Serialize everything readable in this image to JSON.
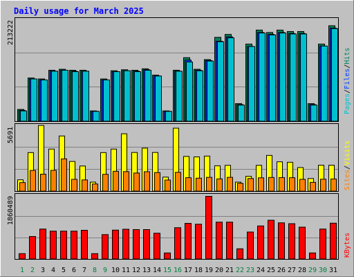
{
  "title": "Daily usage for March 2025",
  "colors": {
    "background": "#c0c0c0",
    "title": "#0000ff",
    "hits": "#00805c",
    "files": "#0040ff",
    "pages": "#00c0d0",
    "visits": "#ffff00",
    "sites": "#ff8000",
    "kbytes": "#ff0000",
    "weekday_label": "#000000",
    "weekend_label": "#008040"
  },
  "legend": {
    "hits": "Hits",
    "files": "Files",
    "pages": "Pages",
    "visits": "Visits",
    "sites": "Sites",
    "kbytes": "KBytes",
    "sep": "/"
  },
  "axis_max_labels": {
    "top": "213222",
    "middle": "5691",
    "bottom": "1860489"
  },
  "chart_data": [
    {
      "type": "bar",
      "panel": "hits-files-pages",
      "title": "Daily usage for March 2025",
      "categories": [
        "1",
        "2",
        "3",
        "4",
        "5",
        "6",
        "7",
        "8",
        "9",
        "10",
        "11",
        "12",
        "13",
        "14",
        "15",
        "16",
        "17",
        "18",
        "19",
        "20",
        "21",
        "22",
        "23",
        "24",
        "25",
        "26",
        "27",
        "28",
        "29",
        "30",
        "31"
      ],
      "weekend_days": [
        "1",
        "2",
        "8",
        "9",
        "15",
        "16",
        "22",
        "23",
        "29",
        "30"
      ],
      "ylim": [
        0,
        213222
      ],
      "series": [
        {
          "name": "Hits",
          "values": [
            25000,
            90000,
            88000,
            106000,
            108000,
            106000,
            106000,
            22000,
            88000,
            105000,
            107000,
            106000,
            109000,
            96000,
            22000,
            106000,
            132000,
            108000,
            128000,
            174000,
            180000,
            37000,
            160000,
            189000,
            184000,
            189000,
            186000,
            186000,
            37000,
            160000,
            198000
          ]
        },
        {
          "name": "Files",
          "values": [
            23000,
            88000,
            86000,
            104000,
            106000,
            104000,
            104000,
            21000,
            86000,
            103000,
            105000,
            104000,
            107000,
            94000,
            21000,
            104000,
            127000,
            106000,
            126000,
            166000,
            175000,
            35000,
            155000,
            184000,
            180000,
            184000,
            182000,
            182000,
            35000,
            156000,
            193000
          ]
        },
        {
          "name": "Pages",
          "values": [
            22000,
            88000,
            86000,
            104000,
            106000,
            103000,
            104000,
            21000,
            86000,
            103000,
            105000,
            103000,
            106000,
            94000,
            21000,
            104000,
            123000,
            105000,
            125000,
            165000,
            173000,
            34000,
            155000,
            183000,
            179000,
            183000,
            181000,
            181000,
            34000,
            156000,
            192000
          ]
        }
      ]
    },
    {
      "type": "bar",
      "panel": "visits-sites",
      "categories": [
        "1",
        "2",
        "3",
        "4",
        "5",
        "6",
        "7",
        "8",
        "9",
        "10",
        "11",
        "12",
        "13",
        "14",
        "15",
        "16",
        "17",
        "18",
        "19",
        "20",
        "21",
        "22",
        "23",
        "24",
        "25",
        "26",
        "27",
        "28",
        "29",
        "30",
        "31"
      ],
      "ylim": [
        0,
        5691
      ],
      "series": [
        {
          "name": "Visits",
          "values": [
            1000,
            3330,
            5650,
            3630,
            4750,
            2570,
            2180,
            800,
            3330,
            3630,
            4940,
            3340,
            3710,
            3340,
            1230,
            5420,
            3000,
            2960,
            3030,
            2200,
            2240,
            800,
            1300,
            2240,
            3090,
            2540,
            2500,
            2050,
            1110,
            2250,
            2250
          ]
        },
        {
          "name": "Sites",
          "values": [
            760,
            1800,
            1480,
            1810,
            2790,
            1040,
            990,
            640,
            1470,
            1730,
            1700,
            1580,
            1690,
            1620,
            980,
            1640,
            1180,
            1140,
            1210,
            1080,
            1210,
            700,
            1110,
            1170,
            1200,
            1190,
            1180,
            1040,
            780,
            1050,
            1070
          ]
        }
      ]
    },
    {
      "type": "bar",
      "panel": "kbytes",
      "categories": [
        "1",
        "2",
        "3",
        "4",
        "5",
        "6",
        "7",
        "8",
        "9",
        "10",
        "11",
        "12",
        "13",
        "14",
        "15",
        "16",
        "17",
        "18",
        "19",
        "20",
        "21",
        "22",
        "23",
        "24",
        "25",
        "26",
        "27",
        "28",
        "29",
        "30",
        "31"
      ],
      "ylim": [
        0,
        1860489
      ],
      "series": [
        {
          "name": "KBytes",
          "values": [
            165000,
            660000,
            875000,
            815000,
            815000,
            815000,
            840000,
            165000,
            715000,
            845000,
            870000,
            860000,
            860000,
            755000,
            185000,
            915000,
            1040000,
            1015000,
            1820000,
            1075000,
            1075000,
            305000,
            790000,
            965000,
            1130000,
            1055000,
            1030000,
            930000,
            185000,
            875000,
            1045000
          ]
        }
      ]
    }
  ]
}
